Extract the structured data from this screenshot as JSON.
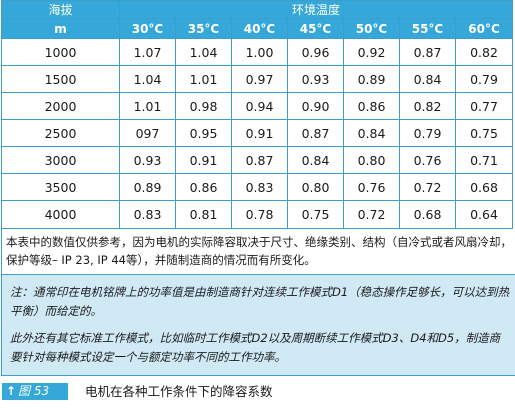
{
  "table": {
    "altitude_header": "海拔",
    "altitude_unit": "m",
    "ambient_header": "环境温度",
    "temperatures": [
      "30°C",
      "35°C",
      "40°C",
      "45°C",
      "50°C",
      "55°C",
      "60°C"
    ],
    "rows": [
      {
        "altitude": "1000",
        "values": [
          "1.07",
          "1.04",
          "1.00",
          "0.96",
          "0.92",
          "0.87",
          "0.82"
        ]
      },
      {
        "altitude": "1500",
        "values": [
          "1.04",
          "1.01",
          "0.97",
          "0.93",
          "0.89",
          "0.84",
          "0.79"
        ]
      },
      {
        "altitude": "2000",
        "values": [
          "1.01",
          "0.98",
          "0.94",
          "0.90",
          "0.86",
          "0.82",
          "0.77"
        ]
      },
      {
        "altitude": "2500",
        "values": [
          "097",
          "0.95",
          "0.91",
          "0.87",
          "0.84",
          "0.79",
          "0.75"
        ]
      },
      {
        "altitude": "3000",
        "values": [
          "0.93",
          "0.91",
          "0.87",
          "0.84",
          "0.80",
          "0.76",
          "0.71"
        ]
      },
      {
        "altitude": "3500",
        "values": [
          "0.89",
          "0.86",
          "0.83",
          "0.80",
          "0.76",
          "0.72",
          "0.68"
        ]
      },
      {
        "altitude": "4000",
        "values": [
          "0.83",
          "0.81",
          "0.78",
          "0.75",
          "0.72",
          "0.68",
          "0.64"
        ]
      }
    ]
  },
  "note": "本表中的数值仅供参考，因为电机的实际降容取决于尺寸、绝缘类别、结构（自冷式或者风扇冷却，保护等级– IP 23, IP 44等），并随制造商的情况而有所变化。",
  "remarks": [
    "注：通常印在电机铭牌上的功率值是由制造商针对连续工作模式D1（稳态操作足够长，可以达到热平衡）而给定的。",
    "此外还有其它标准工作模式，比如临时工作模式D2以及周期断续工作模式D3、D4和D5，制造商要针对每种模式设定一个与额定功率不同的工作功率。"
  ],
  "caption": {
    "arrow": "↑",
    "figure_label": "图 53",
    "title": "电机在各种工作条件下的降容系数"
  },
  "colors": {
    "header_bg": "#35a7d8",
    "border": "#3b9fc9",
    "remark_bg": "#cfe9f5"
  }
}
